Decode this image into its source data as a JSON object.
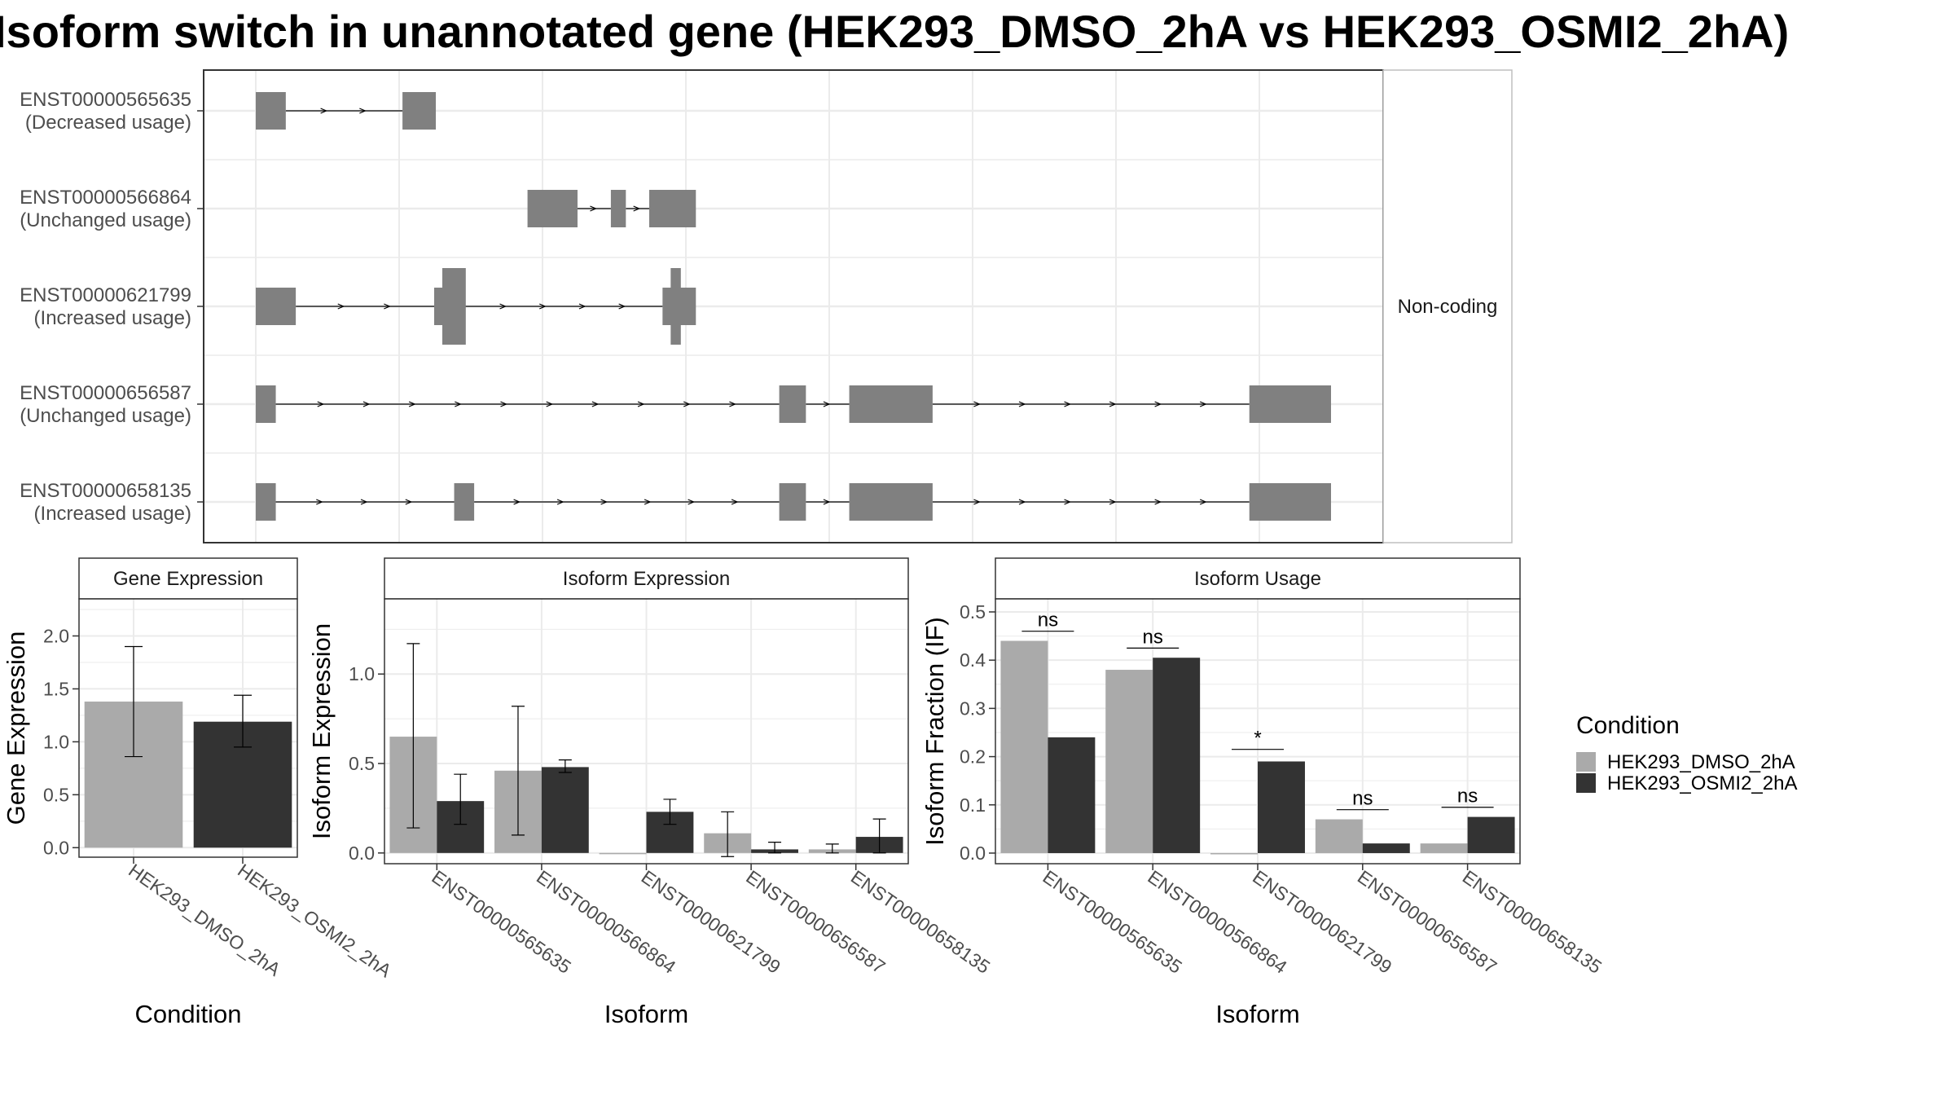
{
  "title": "Isoform switch in unannotated gene (HEK293_DMSO_2hA vs HEK293_OSMI2_2hA)",
  "colors": {
    "HEK293_DMSO_2hA": "#aaaaaa",
    "HEK293_OSMI2_2hA": "#333333",
    "exon": "#808080",
    "grid": "#ebebeb",
    "panel_border": "#333333"
  },
  "legend": {
    "title": "Condition",
    "items": [
      "HEK293_DMSO_2hA",
      "HEK293_OSMI2_2hA"
    ]
  },
  "chart_data": [
    {
      "type": "gene-structure",
      "strip_label": "Non-coding",
      "transcripts": [
        {
          "id": "ENST00000565635",
          "usage": "(Decreased usage)",
          "exons": [
            [
              0.0,
              0.018
            ],
            [
              0.088,
              0.108
            ]
          ]
        },
        {
          "id": "ENST00000566864",
          "usage": "(Unchanged usage)",
          "exons": [
            [
              0.163,
              0.193
            ],
            [
              0.213,
              0.222
            ],
            [
              0.236,
              0.264
            ]
          ]
        },
        {
          "id": "ENST00000621799",
          "usage": "(Increased usage)",
          "exons": [
            [
              0.0,
              0.024
            ],
            [
              0.107,
              0.125
            ],
            [
              0.244,
              0.264
            ]
          ]
        },
        {
          "id": "ENST00000656587",
          "usage": "(Unchanged usage)",
          "exons": [
            [
              0.0,
              0.012
            ],
            [
              0.314,
              0.33
            ],
            [
              0.356,
              0.406
            ],
            [
              0.596,
              0.645
            ]
          ]
        },
        {
          "id": "ENST00000658135",
          "usage": "(Increased usage)",
          "exons": [
            [
              0.0,
              0.012
            ],
            [
              0.119,
              0.131
            ],
            [
              0.314,
              0.33
            ],
            [
              0.356,
              0.406
            ],
            [
              0.596,
              0.645
            ]
          ]
        }
      ]
    },
    {
      "type": "bar",
      "title": "Gene Expression",
      "xlabel": "Condition",
      "ylabel": "Gene Expression",
      "ylim": [
        -0.09,
        2.35
      ],
      "yticks": [
        "0.0",
        "0.5",
        "1.0",
        "1.5",
        "2.0"
      ],
      "categories": [
        "HEK293_DMSO_2hA",
        "HEK293_OSMI2_2hA"
      ],
      "values": [
        1.38,
        1.19
      ],
      "errors": [
        [
          0.86,
          1.9
        ],
        [
          0.95,
          1.44
        ]
      ]
    },
    {
      "type": "bar",
      "title": "Isoform Expression",
      "xlabel": "Isoform",
      "ylabel": "Isoform Expression",
      "ylim": [
        -0.06,
        1.42
      ],
      "yticks": [
        "0.0",
        "0.5",
        "1.0"
      ],
      "categories": [
        "ENST00000565635",
        "ENST00000566864",
        "ENST00000621799",
        "ENST00000656587",
        "ENST00000658135"
      ],
      "series": [
        {
          "name": "HEK293_DMSO_2hA",
          "values": [
            0.65,
            0.46,
            0.0,
            0.11,
            0.02
          ],
          "errors": [
            [
              0.14,
              1.17
            ],
            [
              0.1,
              0.82
            ],
            [
              0.0,
              0.0
            ],
            [
              -0.02,
              0.23
            ],
            [
              0.0,
              0.05
            ]
          ]
        },
        {
          "name": "HEK293_OSMI2_2hA",
          "values": [
            0.29,
            0.48,
            0.23,
            0.02,
            0.09
          ],
          "errors": [
            [
              0.16,
              0.44
            ],
            [
              0.45,
              0.52
            ],
            [
              0.16,
              0.3
            ],
            [
              0.0,
              0.06
            ],
            [
              0.0,
              0.19
            ]
          ]
        }
      ]
    },
    {
      "type": "bar",
      "title": "Isoform Usage",
      "xlabel": "Isoform",
      "ylabel": "Isoform Fraction (IF)",
      "ylim": [
        -0.022,
        0.527
      ],
      "yticks": [
        "0.0",
        "0.1",
        "0.2",
        "0.3",
        "0.4",
        "0.5"
      ],
      "categories": [
        "ENST00000565635",
        "ENST00000566864",
        "ENST00000621799",
        "ENST00000656587",
        "ENST00000658135"
      ],
      "series": [
        {
          "name": "HEK293_DMSO_2hA",
          "values": [
            0.44,
            0.38,
            0.0,
            0.07,
            0.02
          ]
        },
        {
          "name": "HEK293_OSMI2_2hA",
          "values": [
            0.24,
            0.405,
            0.19,
            0.02,
            0.075
          ]
        }
      ],
      "significance": [
        "ns",
        "ns",
        "*",
        "ns",
        "ns"
      ],
      "significance_levels": [
        0.46,
        0.425,
        0.215,
        0.09,
        0.095
      ]
    }
  ]
}
